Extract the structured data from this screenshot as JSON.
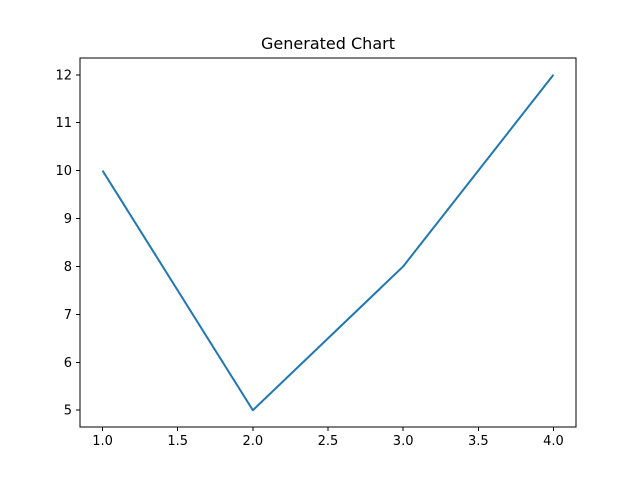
{
  "chart_data": {
    "type": "line",
    "title": "Generated Chart",
    "xlabel": "",
    "ylabel": "",
    "x": [
      1.0,
      2.0,
      3.0,
      4.0
    ],
    "series": [
      {
        "values": [
          10,
          5,
          8,
          12
        ],
        "color": "#1f77b4"
      }
    ],
    "xlim": [
      0.85,
      4.15
    ],
    "ylim": [
      4.65,
      12.35
    ],
    "xticks": [
      1.0,
      1.5,
      2.0,
      2.5,
      3.0,
      3.5,
      4.0
    ],
    "xtick_labels": [
      "1.0",
      "1.5",
      "2.0",
      "2.5",
      "3.0",
      "3.5",
      "4.0"
    ],
    "yticks": [
      5,
      6,
      7,
      8,
      9,
      10,
      11,
      12
    ],
    "ytick_labels": [
      "5",
      "6",
      "7",
      "8",
      "9",
      "10",
      "11",
      "12"
    ],
    "grid": false,
    "legend": "none"
  }
}
